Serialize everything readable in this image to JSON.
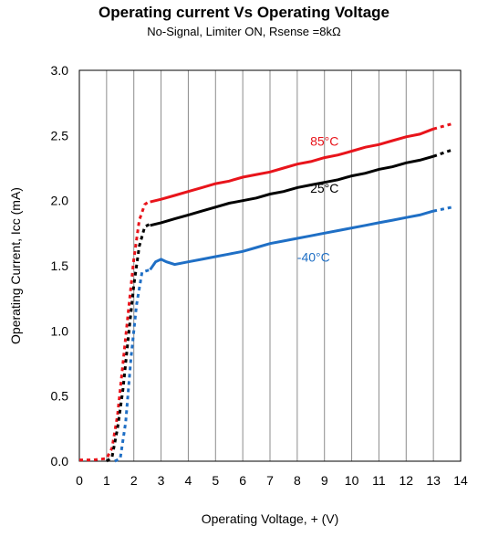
{
  "chart_data": {
    "type": "line",
    "title": "Operating current Vs Operating Voltage",
    "subtitle": "No-Signal, Limiter ON, Rsense =8kΩ",
    "xlabel": "Operating Voltage, + (V)",
    "ylabel": "Operating Current, Icc (mA)",
    "xlim": [
      0,
      14
    ],
    "ylim": [
      0,
      3.0
    ],
    "x_ticks": [
      "0",
      "1",
      "2",
      "3",
      "4",
      "5",
      "6",
      "7",
      "8",
      "9",
      "10",
      "11",
      "12",
      "13",
      "14"
    ],
    "y_ticks": [
      "0.0",
      "0.5",
      "1.0",
      "1.5",
      "2.0",
      "2.5",
      "3.0"
    ],
    "grid": "vertical",
    "series": [
      {
        "name": "85°C",
        "color": "#e8141b",
        "dashed_x": [
          0.0,
          0.5,
          1.0,
          1.2,
          1.4,
          1.6,
          1.8,
          2.0,
          2.2,
          2.4,
          2.6
        ],
        "dashed_y": [
          0.01,
          0.01,
          0.02,
          0.1,
          0.35,
          0.75,
          1.15,
          1.55,
          1.85,
          1.97,
          2.0
        ],
        "x": [
          2.6,
          3,
          3.5,
          4,
          4.5,
          5,
          5.5,
          6,
          6.5,
          7,
          7.5,
          8,
          8.5,
          9,
          9.5,
          10,
          10.5,
          11,
          11.5,
          12,
          12.5,
          13
        ],
        "y": [
          1.99,
          2.01,
          2.04,
          2.07,
          2.1,
          2.13,
          2.15,
          2.18,
          2.2,
          2.22,
          2.25,
          2.28,
          2.3,
          2.33,
          2.35,
          2.38,
          2.41,
          2.43,
          2.46,
          2.49,
          2.51,
          2.55
        ],
        "tail_x": [
          13,
          13.7
        ],
        "tail_y": [
          2.55,
          2.59
        ]
      },
      {
        "name": "25°C",
        "color": "#000000",
        "dashed_x": [
          1.0,
          1.2,
          1.4,
          1.6,
          1.8,
          2.0,
          2.2,
          2.4,
          2.6
        ],
        "dashed_y": [
          0.0,
          0.03,
          0.25,
          0.55,
          0.95,
          1.35,
          1.65,
          1.8,
          1.82
        ],
        "x": [
          2.6,
          3,
          3.5,
          4,
          4.5,
          5,
          5.5,
          6,
          6.5,
          7,
          7.5,
          8,
          8.5,
          9,
          9.5,
          10,
          10.5,
          11,
          11.5,
          12,
          12.5,
          13
        ],
        "y": [
          1.81,
          1.83,
          1.86,
          1.89,
          1.92,
          1.95,
          1.98,
          2.0,
          2.02,
          2.05,
          2.07,
          2.1,
          2.12,
          2.14,
          2.16,
          2.19,
          2.21,
          2.24,
          2.26,
          2.29,
          2.31,
          2.34
        ],
        "tail_x": [
          13,
          13.7
        ],
        "tail_y": [
          2.34,
          2.39
        ]
      },
      {
        "name": "-40°C",
        "color": "#1f6fc5",
        "dashed_x": [
          1.3,
          1.5,
          1.7,
          1.9,
          2.1,
          2.3,
          2.6
        ],
        "dashed_y": [
          0.0,
          0.02,
          0.3,
          0.8,
          1.2,
          1.45,
          1.47
        ],
        "x": [
          2.6,
          2.8,
          3.0,
          3.2,
          3.5,
          4,
          4.5,
          5,
          5.5,
          6,
          6.5,
          7,
          7.5,
          8,
          8.5,
          9,
          9.5,
          10,
          10.5,
          11,
          11.5,
          12,
          12.5,
          13
        ],
        "y": [
          1.47,
          1.53,
          1.55,
          1.53,
          1.51,
          1.53,
          1.55,
          1.57,
          1.59,
          1.61,
          1.64,
          1.67,
          1.69,
          1.71,
          1.73,
          1.75,
          1.77,
          1.79,
          1.81,
          1.83,
          1.85,
          1.87,
          1.89,
          1.92
        ],
        "tail_x": [
          13,
          13.7
        ],
        "tail_y": [
          1.92,
          1.95
        ]
      }
    ]
  }
}
